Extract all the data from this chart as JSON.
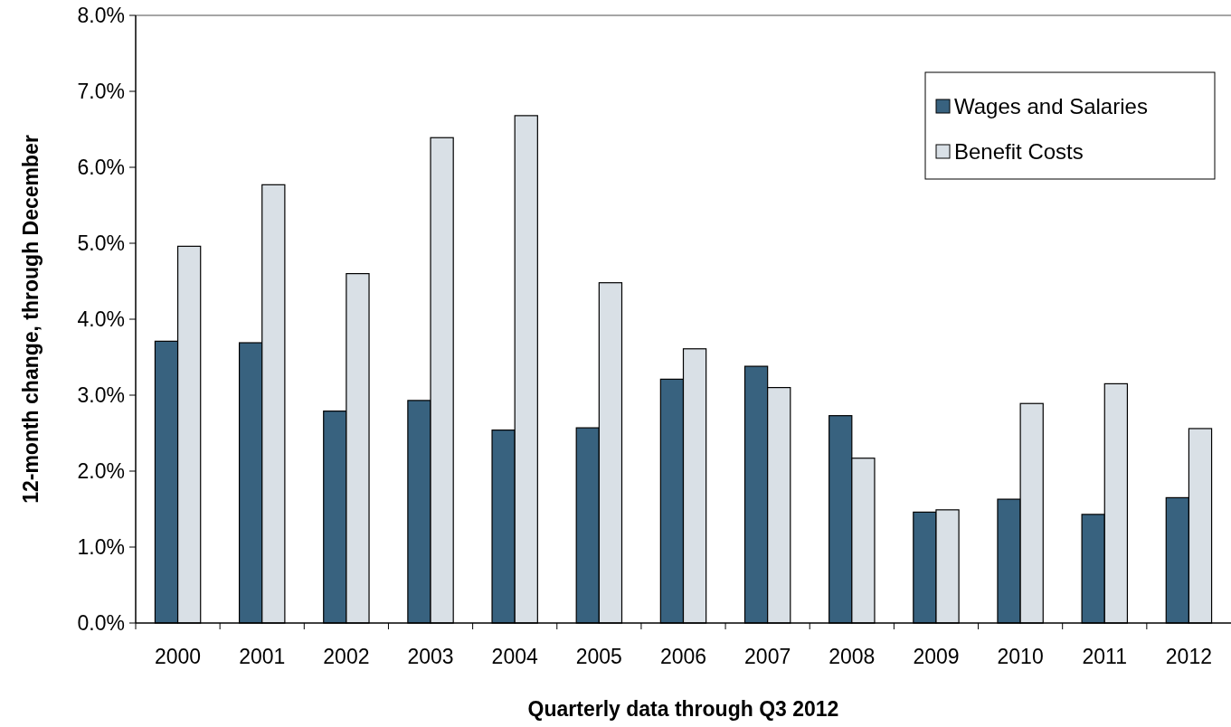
{
  "chart_data": {
    "type": "bar",
    "xlabel": "Quarterly data through Q3 2012",
    "ylabel": "12-month change, through December",
    "categories": [
      "2000",
      "2001",
      "2002",
      "2003",
      "2004",
      "2005",
      "2006",
      "2007",
      "2008",
      "2009",
      "2010",
      "2011",
      "2012"
    ],
    "series": [
      {
        "name": "Wages and Salaries",
        "color": "#38627f",
        "values": [
          3.71,
          3.69,
          2.79,
          2.93,
          2.54,
          2.57,
          3.21,
          3.38,
          2.73,
          1.46,
          1.63,
          1.43,
          1.65
        ]
      },
      {
        "name": "Benefit Costs",
        "color": "#d9e0e6",
        "values": [
          4.96,
          5.77,
          4.6,
          6.39,
          6.68,
          4.48,
          3.61,
          3.1,
          2.17,
          1.49,
          2.89,
          3.15,
          2.56
        ]
      }
    ],
    "ylim": [
      0,
      8
    ],
    "yticks": [
      {
        "value": 0,
        "label": "0.0%"
      },
      {
        "value": 1,
        "label": "1.0%"
      },
      {
        "value": 2,
        "label": "2.0%"
      },
      {
        "value": 3,
        "label": "3.0%"
      },
      {
        "value": 4,
        "label": "4.0%"
      },
      {
        "value": 5,
        "label": "5.0%"
      },
      {
        "value": 6,
        "label": "6.0%"
      },
      {
        "value": 7,
        "label": "7.0%"
      },
      {
        "value": 8,
        "label": "8.0%"
      }
    ],
    "grid": false,
    "legend": "top right"
  }
}
